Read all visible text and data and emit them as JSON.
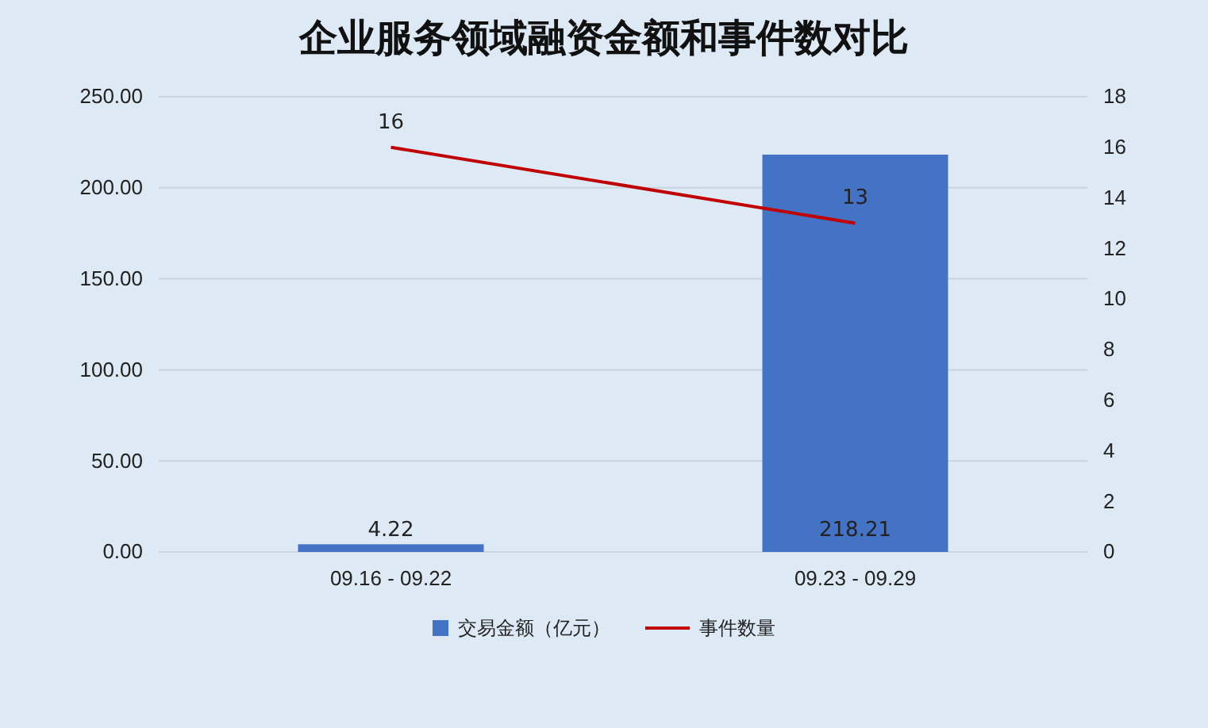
{
  "chart_data": {
    "type": "bar",
    "title": "企业服务领域融资金额和事件数对比",
    "categories": [
      "09.16 - 09.22",
      "09.23 - 09.29"
    ],
    "series": [
      {
        "name": "交易金额（亿元）",
        "color": "#4472c4",
        "values": [
          4.22,
          218.21
        ]
      },
      {
        "name": "事件数量",
        "type": "line",
        "axis": "y2",
        "color": "#c00000",
        "values": [
          16,
          13
        ]
      }
    ],
    "ylim": [
      0,
      250
    ],
    "yticks": [
      {
        "value": 0,
        "label": "0.00"
      },
      {
        "value": 50,
        "label": "50.00"
      },
      {
        "value": 100,
        "label": "100.00"
      },
      {
        "value": 150,
        "label": "150.00"
      },
      {
        "value": 200,
        "label": "200.00"
      },
      {
        "value": 250,
        "label": "250.00"
      }
    ],
    "y2lim": [
      0,
      18
    ],
    "y2ticks": [
      0,
      2,
      4,
      6,
      8,
      10,
      12,
      14,
      16,
      18
    ],
    "grid": "y",
    "legend": "bottom",
    "data_labels": true,
    "marker": "none",
    "line_style": "solid"
  }
}
